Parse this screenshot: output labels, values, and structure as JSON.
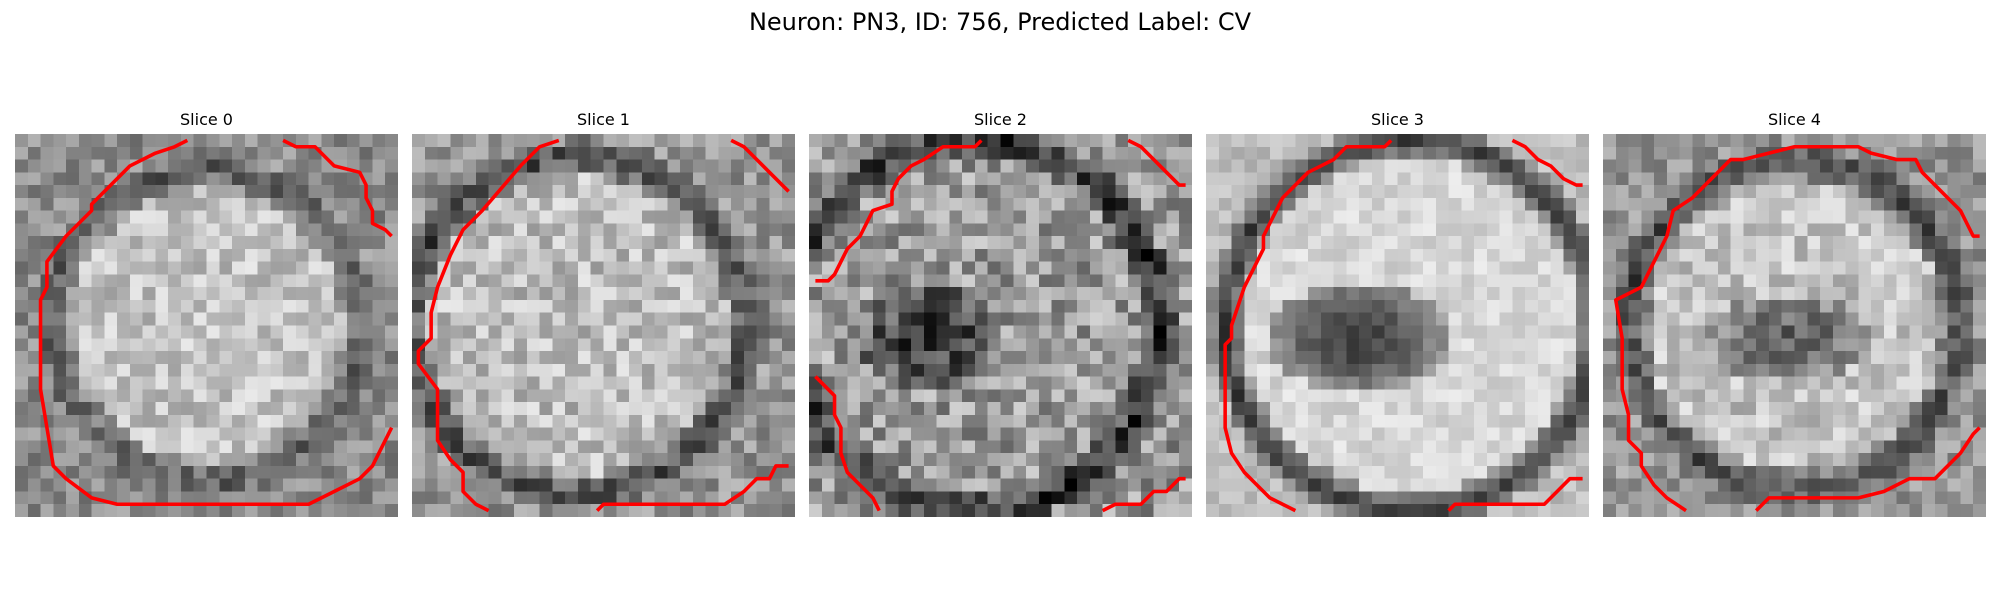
{
  "title": "Neuron: PN3, ID: 756, Predicted Label: CV",
  "contour_color": "#ff0000",
  "slices": [
    {
      "label": "Slice 0",
      "profile": "membrane"
    },
    {
      "label": "Slice 1",
      "profile": "membrane"
    },
    {
      "label": "Slice 2",
      "profile": "dark-center"
    },
    {
      "label": "Slice 3",
      "profile": "dark-center-bright"
    },
    {
      "label": "Slice 4",
      "profile": "dark-center"
    }
  ]
}
